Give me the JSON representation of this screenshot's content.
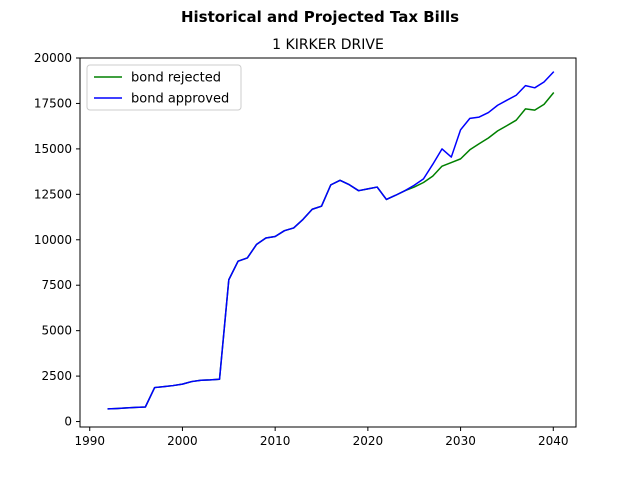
{
  "chart_data": {
    "type": "line",
    "suptitle": "Historical and Projected Tax Bills",
    "title": "1 KIRKER DRIVE",
    "xlabel": "",
    "ylabel": "",
    "xlim": [
      1988.95,
      2042.45
    ],
    "ylim": [
      -300,
      20000
    ],
    "xticks": [
      1990,
      2000,
      2010,
      2020,
      2030,
      2040
    ],
    "yticks": [
      0,
      2500,
      5000,
      7500,
      10000,
      12500,
      15000,
      17500,
      20000
    ],
    "grid": false,
    "legend": "top-left",
    "series": [
      {
        "name": "bond rejected",
        "color": "#008000",
        "x": [
          1992,
          1993,
          1994,
          1995,
          1996,
          1997,
          1998,
          1999,
          2000,
          2001,
          2002,
          2003,
          2004,
          2005,
          2006,
          2007,
          2008,
          2009,
          2010,
          2011,
          2012,
          2013,
          2014,
          2015,
          2016,
          2017,
          2018,
          2019,
          2020,
          2021,
          2022,
          2023,
          2024,
          2025,
          2026,
          2027,
          2028,
          2029,
          2030,
          2031,
          2032,
          2033,
          2034,
          2035,
          2036,
          2037,
          2038,
          2039,
          2040
        ],
        "y": [
          700,
          720,
          750,
          780,
          800,
          1870,
          1920,
          1980,
          2060,
          2200,
          2270,
          2290,
          2330,
          7800,
          8820,
          9000,
          9750,
          10100,
          10180,
          10500,
          10650,
          11120,
          11680,
          11850,
          13020,
          13270,
          13030,
          12700,
          12800,
          12900,
          12220,
          12450,
          12700,
          12900,
          13150,
          13500,
          14050,
          14250,
          14450,
          14950,
          15280,
          15600,
          15990,
          16280,
          16580,
          17200,
          17130,
          17450,
          18070
        ]
      },
      {
        "name": "bond approved",
        "color": "#0000ff",
        "x": [
          1992,
          1993,
          1994,
          1995,
          1996,
          1997,
          1998,
          1999,
          2000,
          2001,
          2002,
          2003,
          2004,
          2005,
          2006,
          2007,
          2008,
          2009,
          2010,
          2011,
          2012,
          2013,
          2014,
          2015,
          2016,
          2017,
          2018,
          2019,
          2020,
          2021,
          2022,
          2023,
          2024,
          2025,
          2026,
          2027,
          2028,
          2029,
          2030,
          2031,
          2032,
          2033,
          2034,
          2035,
          2036,
          2037,
          2038,
          2039,
          2040
        ],
        "y": [
          700,
          720,
          750,
          780,
          800,
          1870,
          1920,
          1980,
          2060,
          2200,
          2270,
          2290,
          2330,
          7800,
          8820,
          9000,
          9750,
          10100,
          10180,
          10500,
          10650,
          11120,
          11680,
          11850,
          13020,
          13270,
          13030,
          12700,
          12800,
          12900,
          12220,
          12450,
          12700,
          13000,
          13350,
          14150,
          15000,
          14550,
          16050,
          16680,
          16750,
          17000,
          17400,
          17680,
          17950,
          18480,
          18360,
          18680,
          19220
        ]
      }
    ]
  }
}
